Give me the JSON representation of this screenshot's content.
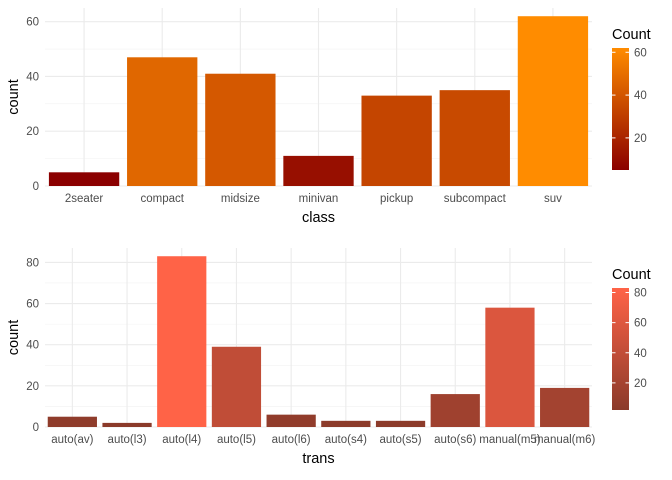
{
  "chart_data": [
    {
      "type": "bar",
      "xlabel": "class",
      "ylabel": "count",
      "categories": [
        "2seater",
        "compact",
        "midsize",
        "minivan",
        "pickup",
        "subcompact",
        "suv"
      ],
      "values": [
        5,
        47,
        41,
        11,
        33,
        35,
        62
      ],
      "ylim": [
        0,
        65
      ],
      "yticks": [
        0,
        20,
        40,
        60
      ],
      "grid": true,
      "legend": {
        "title": "Count",
        "placement": "right",
        "ticks": [
          20,
          40,
          60
        ],
        "low_color": "#8b0000",
        "high_color": "#ff8c00",
        "range": [
          5,
          62
        ]
      }
    },
    {
      "type": "bar",
      "xlabel": "trans",
      "ylabel": "count",
      "categories": [
        "auto(av)",
        "auto(l3)",
        "auto(l4)",
        "auto(l5)",
        "auto(l6)",
        "auto(s4)",
        "auto(s5)",
        "auto(s6)",
        "manual(m5)",
        "manual(m6)"
      ],
      "values": [
        5,
        2,
        83,
        39,
        6,
        3,
        3,
        16,
        58,
        19
      ],
      "ylim": [
        0,
        87
      ],
      "yticks": [
        0,
        20,
        40,
        60,
        80
      ],
      "grid": true,
      "legend": {
        "title": "Count",
        "placement": "right",
        "ticks": [
          20,
          40,
          60,
          80
        ],
        "low_color": "#8b3a2a",
        "high_color": "#ff6347",
        "range": [
          2,
          83
        ]
      }
    }
  ]
}
